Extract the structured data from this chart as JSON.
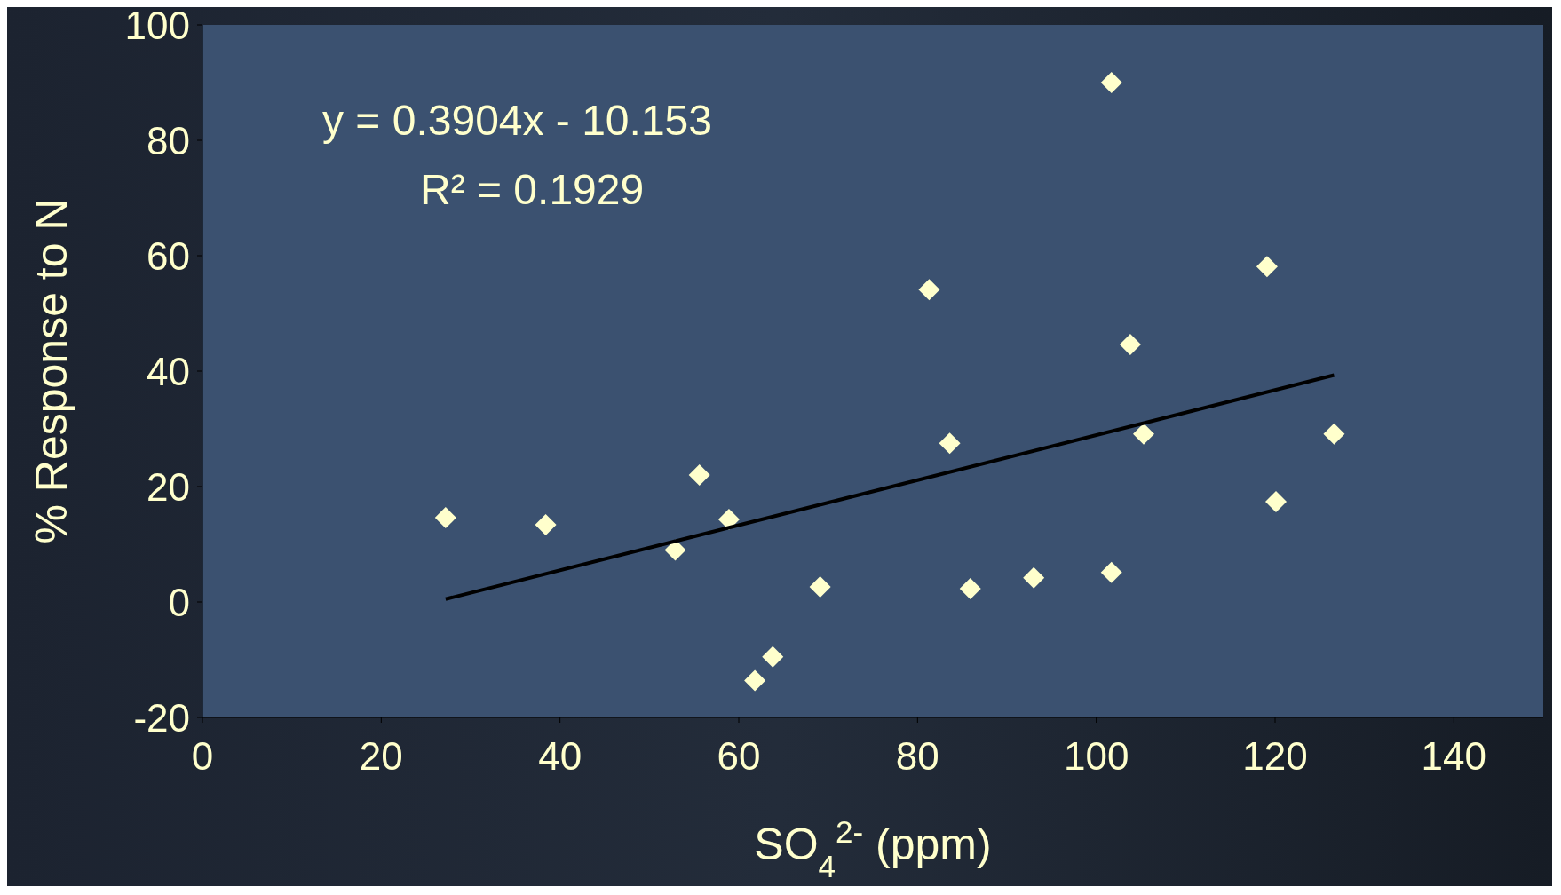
{
  "chart_data": {
    "type": "scatter",
    "xlabel": "SO$_{4}$$^{2-}$ (ppm)",
    "ylabel": "% Response to N",
    "x": [
      27.2,
      38.4,
      52.9,
      55.6,
      58.9,
      61.8,
      63.8,
      69.1,
      81.3,
      83.6,
      85.9,
      93.0,
      101.7,
      101.7,
      103.8,
      105.3,
      119.1,
      120.1,
      126.6
    ],
    "series": [
      {
        "color": "#ffffcc",
        "marker": "diamond",
        "values": [
          14.6,
          13.4,
          9.0,
          22.0,
          14.3,
          -13.6,
          -9.5,
          2.6,
          54.1,
          27.5,
          2.3,
          4.2,
          90.0,
          5.1,
          44.6,
          29.1,
          58.1,
          17.4,
          29.1
        ]
      },
      {
        "type": "line",
        "color": "#000000",
        "marker": "none",
        "x": [
          27.2,
          126.6
        ],
        "values": [
          0.5,
          39.3
        ]
      }
    ],
    "xlim": [
      0,
      150
    ],
    "xticks": [
      0,
      20,
      40,
      60,
      80,
      100,
      120,
      140
    ],
    "ylim": [
      -20,
      100
    ],
    "yticks": [
      -20,
      0,
      20,
      40,
      60,
      80,
      100
    ],
    "grid": false,
    "annotations": [
      "y = 0.3904x - 10.153",
      "R² = 0.1929"
    ]
  }
}
